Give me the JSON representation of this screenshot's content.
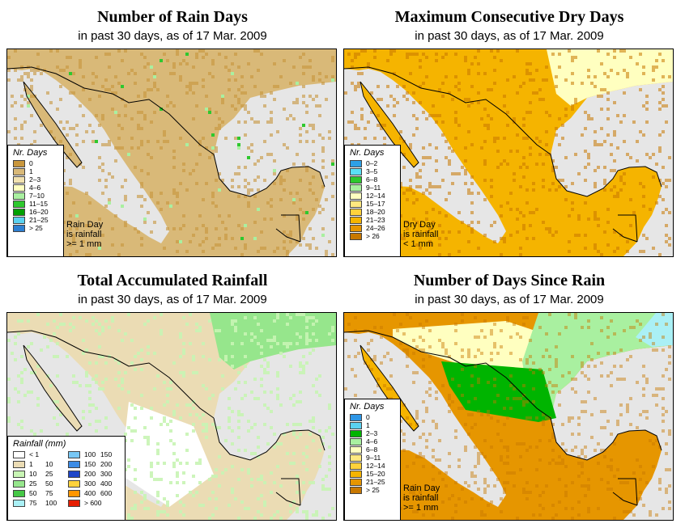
{
  "panels": {
    "rain_days": {
      "title": "Number of Rain Days",
      "subtitle": "in past 30 days, as of  17 Mar. 2009",
      "legend_title": "Nr. Days",
      "legend": [
        {
          "label": "0",
          "color": "#c8963c"
        },
        {
          "label": "1",
          "color": "#d9b978"
        },
        {
          "label": "2–3",
          "color": "#f2e2b0"
        },
        {
          "label": "4–6",
          "color": "#ffffc0"
        },
        {
          "label": "7–10",
          "color": "#a9f0a0"
        },
        {
          "label": "11–15",
          "color": "#2ec82e"
        },
        {
          "label": "16–20",
          "color": "#00a000"
        },
        {
          "label": "21–25",
          "color": "#5ad2f0"
        },
        {
          "label": "> 25",
          "color": "#2d80d2"
        }
      ],
      "note": [
        "Rain Day",
        "is rainfall",
        ">= 1 mm"
      ]
    },
    "dry_days": {
      "title": "Maximum Consecutive Dry Days",
      "subtitle": "in past 30 days, as of  17 Mar. 2009",
      "legend_title": "Nr. Days",
      "legend": [
        {
          "label": "0–2",
          "color": "#2da0e6"
        },
        {
          "label": "3–5",
          "color": "#5ae0f5"
        },
        {
          "label": "6–8",
          "color": "#2ec82e"
        },
        {
          "label": "9–11",
          "color": "#a9f0a0"
        },
        {
          "label": "12–14",
          "color": "#ffffc0"
        },
        {
          "label": "15–17",
          "color": "#ffe880"
        },
        {
          "label": "18–20",
          "color": "#ffd23c"
        },
        {
          "label": "21–23",
          "color": "#f5b400"
        },
        {
          "label": "24–26",
          "color": "#e69600"
        },
        {
          "label": "> 26",
          "color": "#c87800"
        }
      ],
      "note": [
        "Dry Day",
        "is rainfall",
        "< 1 mm"
      ]
    },
    "rainfall": {
      "title": "Total Accumulated Rainfall",
      "subtitle": "in past 30 days, as of  17 Mar. 2009",
      "legend_title": "Rainfall (mm)",
      "legend_left": [
        {
          "lo": "< 1",
          "hi": "",
          "color": "#ffffff"
        },
        {
          "lo": "1",
          "hi": "10",
          "color": "#ebdcb4"
        },
        {
          "lo": "10",
          "hi": "25",
          "color": "#c8f5b4"
        },
        {
          "lo": "25",
          "hi": "50",
          "color": "#96e68c"
        },
        {
          "lo": "50",
          "hi": "75",
          "color": "#46c846"
        },
        {
          "lo": "75",
          "hi": "100",
          "color": "#aaf0f5"
        }
      ],
      "legend_right": [
        {
          "lo": "100",
          "hi": "150",
          "color": "#78c8f5"
        },
        {
          "lo": "150",
          "hi": "200",
          "color": "#3c8ce6"
        },
        {
          "lo": "200",
          "hi": "300",
          "color": "#1e46c8"
        },
        {
          "lo": "300",
          "hi": "400",
          "color": "#ffd23c"
        },
        {
          "lo": "400",
          "hi": "600",
          "color": "#ff9600"
        },
        {
          "lo": "> 600",
          "hi": "",
          "color": "#e61e00"
        }
      ]
    },
    "since_rain": {
      "title": "Number of Days Since Rain",
      "subtitle": "in past 30 days, as of  17 Mar. 2009",
      "legend_title": "Nr. Days",
      "legend": [
        {
          "label": "0",
          "color": "#2d96e6"
        },
        {
          "label": "1",
          "color": "#5ad2f0"
        },
        {
          "label": "2–3",
          "color": "#00b400"
        },
        {
          "label": "4–6",
          "color": "#a9f0a0"
        },
        {
          "label": "6–8",
          "color": "#ffffc0"
        },
        {
          "label": "9–11",
          "color": "#ffe880"
        },
        {
          "label": "12–14",
          "color": "#ffd23c"
        },
        {
          "label": "15–20",
          "color": "#f5b400"
        },
        {
          "label": "21–25",
          "color": "#e69600"
        },
        {
          "label": "> 25",
          "color": "#c87800"
        }
      ],
      "note": [
        "Rain Day",
        "is rainfall",
        ">= 1 mm"
      ]
    }
  },
  "colors": {
    "ocean": "#e6e6e6",
    "border": "#000000"
  }
}
